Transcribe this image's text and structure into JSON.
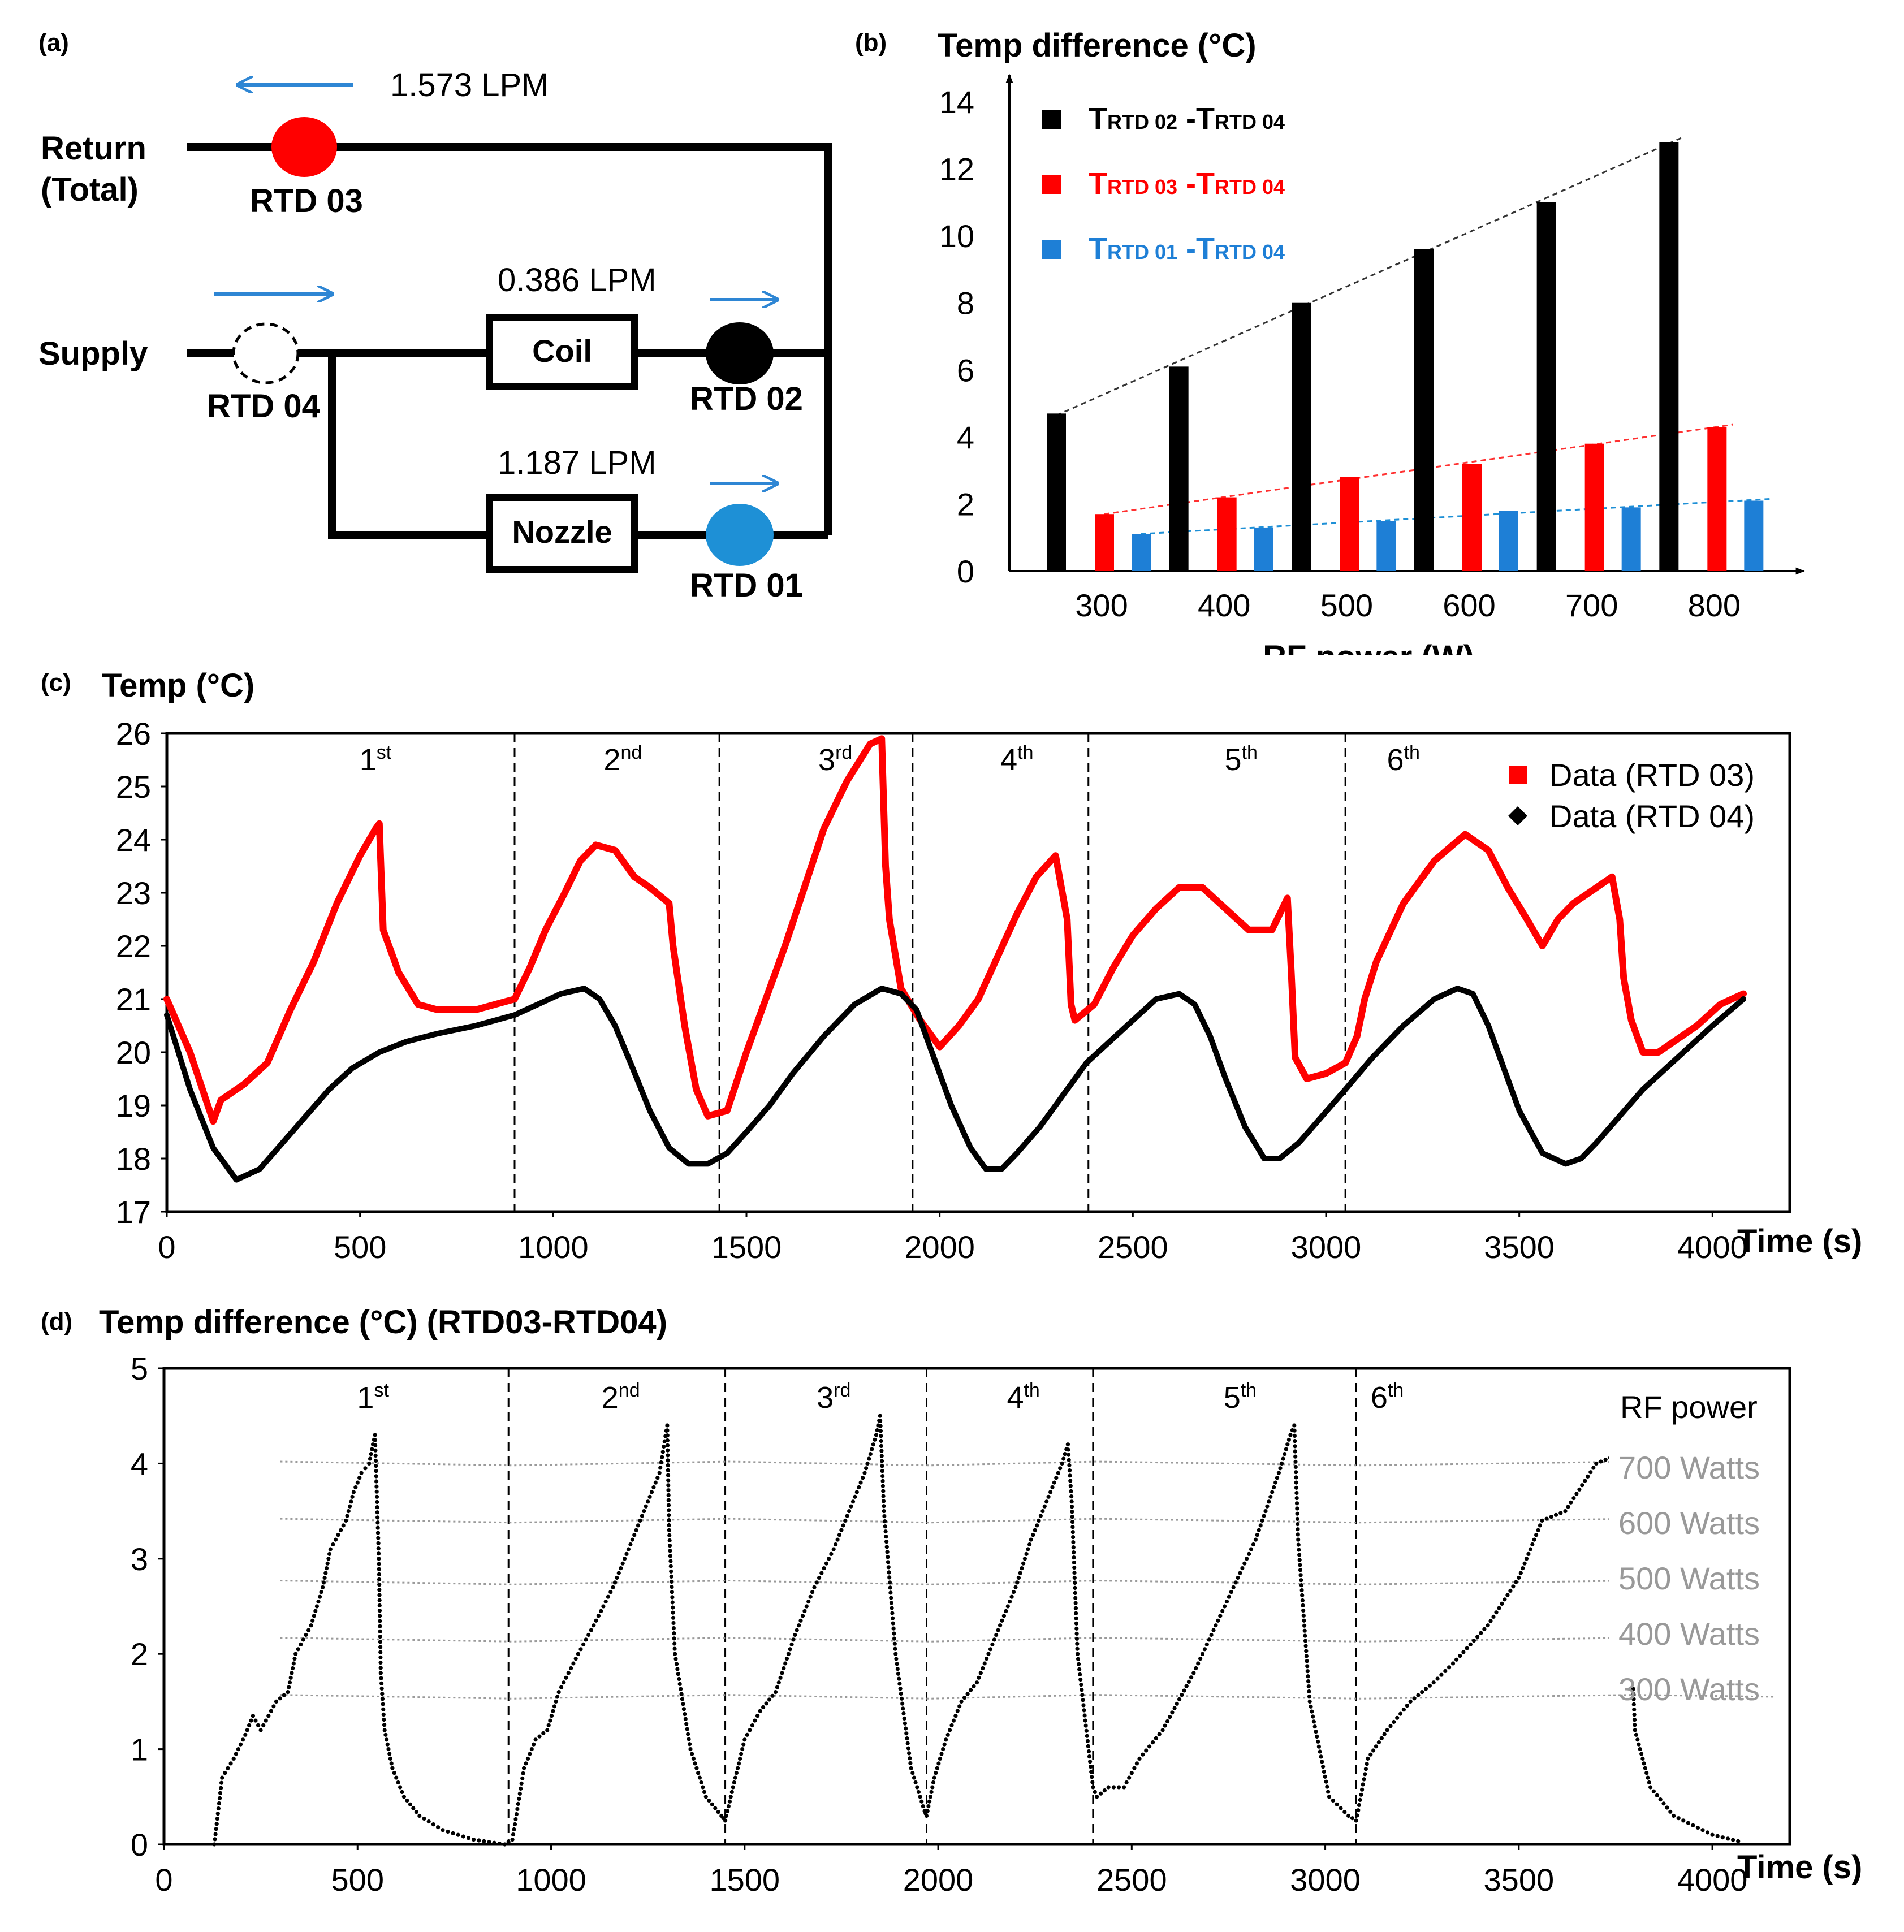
{
  "panels": {
    "a": {
      "label": "(a)",
      "return_label": "Return",
      "return_sub": "(Total)",
      "supply_label": "Supply",
      "flow_return": "1.573 LPM",
      "flow_coil": "0.386 LPM",
      "flow_nozzle": "1.187 LPM",
      "coil_label": "Coil",
      "nozzle_label": "Nozzle",
      "rtd01": "RTD 01",
      "rtd02": "RTD 02",
      "rtd03": "RTD 03",
      "rtd04": "RTD 04",
      "colors": {
        "rtd01": "#1e90d6",
        "rtd02": "#000000",
        "rtd03": "#ff0000",
        "rtd04": "#ffffff",
        "arrow": "#2e86d4"
      }
    },
    "b": {
      "label": "(b)"
    },
    "c": {
      "label": "(c)"
    },
    "d": {
      "label": "(d)"
    }
  },
  "chart_data": [
    {
      "id": "b",
      "type": "bar",
      "title": "Temp difference (°C)",
      "xlabel": "RF power (W)",
      "ylabel": "Temp difference (°C)",
      "ylim": [
        0,
        14
      ],
      "yticks": [
        "0",
        "2",
        "4",
        "6",
        "8",
        "10",
        "12",
        "14"
      ],
      "categories": [
        "300",
        "400",
        "500",
        "600",
        "700",
        "800"
      ],
      "series": [
        {
          "name": "TRTD 02 -TRTD 04",
          "color": "#000000",
          "values": [
            4.7,
            6.1,
            8.0,
            9.6,
            11.0,
            12.8
          ]
        },
        {
          "name": "TRTD 03 -TRTD 04",
          "color": "#ff0000",
          "values": [
            1.7,
            2.2,
            2.8,
            3.2,
            3.8,
            4.3
          ]
        },
        {
          "name": "TRTD 01 -TRTD 04",
          "color": "#1e7fd6",
          "values": [
            1.1,
            1.3,
            1.5,
            1.8,
            1.9,
            2.1
          ]
        }
      ],
      "legend": [
        {
          "pre": "T",
          "sub1": "RTD 02",
          "mid": " -T",
          "sub2": "RTD 04",
          "color": "#000000"
        },
        {
          "pre": "T",
          "sub1": "RTD 03",
          "mid": " -T",
          "sub2": "RTD 04",
          "color": "#ff0000"
        },
        {
          "pre": "T",
          "sub1": "RTD 01",
          "mid": " -T",
          "sub2": "RTD 04",
          "color": "#1e7fd6"
        }
      ],
      "trendlines": "dashed linear fit per series",
      "legend_position": "top-left"
    },
    {
      "id": "c",
      "type": "line",
      "ylabel": "Temp (°C)",
      "xlabel": "Time (s)",
      "xlim": [
        0,
        4200
      ],
      "ylim": [
        17,
        26
      ],
      "xticks": [
        "0",
        "500",
        "1000",
        "1500",
        "2000",
        "2500",
        "3000",
        "3500",
        "4000"
      ],
      "yticks": [
        "17",
        "18",
        "19",
        "20",
        "21",
        "22",
        "23",
        "24",
        "25",
        "26"
      ],
      "cycle_dividers": [
        900,
        1430,
        1930,
        2385,
        3050
      ],
      "cycles": [
        {
          "n": "1",
          "sup": "st",
          "x": 540
        },
        {
          "n": "2",
          "sup": "nd",
          "x": 1180
        },
        {
          "n": "3",
          "sup": "rd",
          "x": 1730
        },
        {
          "n": "4",
          "sup": "th",
          "x": 2200
        },
        {
          "n": "5",
          "sup": "th",
          "x": 2780
        },
        {
          "n": "6",
          "sup": "th",
          "x": 3200
        }
      ],
      "legend_position": "top-right",
      "series": [
        {
          "name": "Data (RTD 03)",
          "marker": "square",
          "color": "#ff0000",
          "x": [
            0,
            60,
            120,
            140,
            200,
            260,
            320,
            380,
            440,
            500,
            540,
            550,
            560,
            600,
            650,
            700,
            800,
            900,
            940,
            980,
            1030,
            1070,
            1110,
            1160,
            1210,
            1250,
            1300,
            1310,
            1340,
            1370,
            1400,
            1450,
            1500,
            1550,
            1600,
            1650,
            1700,
            1760,
            1820,
            1850,
            1860,
            1870,
            1900,
            1950,
            2000,
            2050,
            2100,
            2150,
            2200,
            2250,
            2300,
            2330,
            2340,
            2350,
            2400,
            2450,
            2500,
            2560,
            2620,
            2680,
            2740,
            2800,
            2860,
            2900,
            2910,
            2920,
            2950,
            3000,
            3050,
            3080,
            3100,
            3130,
            3200,
            3280,
            3360,
            3420,
            3470,
            3520,
            3560,
            3600,
            3640,
            3680,
            3740,
            3760,
            3770,
            3790,
            3820,
            3860,
            3900,
            3960,
            4020,
            4080
          ],
          "y": [
            21.0,
            20.0,
            18.7,
            19.1,
            19.4,
            19.8,
            20.8,
            21.7,
            22.8,
            23.7,
            24.2,
            24.3,
            22.3,
            21.5,
            20.9,
            20.8,
            20.8,
            21.0,
            21.6,
            22.3,
            23.0,
            23.6,
            23.9,
            23.8,
            23.3,
            23.1,
            22.8,
            22.0,
            20.5,
            19.3,
            18.8,
            18.9,
            20.0,
            21.0,
            22.0,
            23.1,
            24.2,
            25.1,
            25.8,
            25.9,
            23.5,
            22.5,
            21.2,
            20.6,
            20.1,
            20.5,
            21.0,
            21.8,
            22.6,
            23.3,
            23.7,
            22.5,
            20.9,
            20.6,
            20.9,
            21.6,
            22.2,
            22.7,
            23.1,
            23.1,
            22.7,
            22.3,
            22.3,
            22.9,
            21.5,
            19.9,
            19.5,
            19.6,
            19.8,
            20.3,
            21.0,
            21.7,
            22.8,
            23.6,
            24.1,
            23.8,
            23.1,
            22.5,
            22.0,
            22.5,
            22.8,
            23.0,
            23.3,
            22.5,
            21.4,
            20.6,
            20.0,
            20.0,
            20.2,
            20.5,
            20.9,
            21.1
          ]
        },
        {
          "name": "Data (RTD 04)",
          "marker": "diamond",
          "color": "#000000",
          "x": [
            0,
            60,
            120,
            180,
            240,
            300,
            360,
            420,
            480,
            550,
            620,
            700,
            800,
            900,
            960,
            1020,
            1080,
            1120,
            1160,
            1200,
            1250,
            1300,
            1350,
            1400,
            1450,
            1500,
            1560,
            1620,
            1700,
            1780,
            1850,
            1900,
            1940,
            1980,
            2030,
            2080,
            2120,
            2160,
            2200,
            2260,
            2320,
            2380,
            2440,
            2500,
            2560,
            2620,
            2660,
            2700,
            2740,
            2790,
            2840,
            2880,
            2930,
            2990,
            3050,
            3120,
            3200,
            3280,
            3340,
            3380,
            3420,
            3460,
            3500,
            3560,
            3620,
            3660,
            3700,
            3760,
            3820,
            3880,
            3940,
            4000,
            4080
          ],
          "y": [
            20.7,
            19.3,
            18.2,
            17.6,
            17.8,
            18.3,
            18.8,
            19.3,
            19.7,
            20.0,
            20.2,
            20.35,
            20.5,
            20.7,
            20.9,
            21.1,
            21.2,
            21.0,
            20.5,
            19.8,
            18.9,
            18.2,
            17.9,
            17.9,
            18.1,
            18.5,
            19.0,
            19.6,
            20.3,
            20.9,
            21.2,
            21.1,
            20.8,
            20.0,
            19.0,
            18.2,
            17.8,
            17.8,
            18.1,
            18.6,
            19.2,
            19.8,
            20.2,
            20.6,
            21.0,
            21.1,
            20.9,
            20.3,
            19.5,
            18.6,
            18.0,
            18.0,
            18.3,
            18.8,
            19.3,
            19.9,
            20.5,
            21.0,
            21.2,
            21.1,
            20.5,
            19.7,
            18.9,
            18.1,
            17.9,
            18.0,
            18.3,
            18.8,
            19.3,
            19.7,
            20.1,
            20.5,
            21.0
          ]
        }
      ]
    },
    {
      "id": "d",
      "type": "scatter",
      "ylabel": "Temp difference (°C) (RTD03-RTD04)",
      "xlabel": "Time (s)",
      "xlim": [
        0,
        4200
      ],
      "ylim": [
        0,
        5
      ],
      "xticks": [
        "0",
        "500",
        "1000",
        "1500",
        "2000",
        "2500",
        "3000",
        "3500",
        "4000"
      ],
      "yticks": [
        "0",
        "1",
        "2",
        "3",
        "4",
        "5"
      ],
      "cycle_dividers": [
        890,
        1450,
        1970,
        2400,
        3080
      ],
      "cycles": [
        {
          "n": "1",
          "sup": "st",
          "x": 540
        },
        {
          "n": "2",
          "sup": "nd",
          "x": 1180
        },
        {
          "n": "3",
          "sup": "rd",
          "x": 1730
        },
        {
          "n": "4",
          "sup": "th",
          "x": 2220
        },
        {
          "n": "5",
          "sup": "th",
          "x": 2780
        },
        {
          "n": "6",
          "sup": "th",
          "x": 3160
        }
      ],
      "rf_power_title": "RF power",
      "level_labels": [
        "700 Watts",
        "600 Watts",
        "500 Watts",
        "400 Watts",
        "300 Watts"
      ],
      "level_values": [
        4.0,
        3.4,
        2.75,
        2.15,
        1.55
      ],
      "level_color": "#999999",
      "series": [
        {
          "name": "RTD03-RTD04",
          "color": "#000000",
          "x": [
            130,
            150,
            180,
            210,
            230,
            250,
            290,
            320,
            340,
            380,
            410,
            430,
            470,
            490,
            510,
            530,
            545,
            555,
            560,
            570,
            590,
            620,
            660,
            720,
            800,
            880,
            900,
            930,
            960,
            990,
            1020,
            1070,
            1110,
            1160,
            1200,
            1240,
            1280,
            1300,
            1305,
            1320,
            1360,
            1400,
            1440,
            1450,
            1470,
            1500,
            1540,
            1580,
            1630,
            1680,
            1730,
            1770,
            1810,
            1840,
            1850,
            1860,
            1890,
            1930,
            1965,
            1970,
            1990,
            2020,
            2060,
            2100,
            2150,
            2200,
            2240,
            2280,
            2320,
            2335,
            2345,
            2360,
            2400,
            2410,
            2440,
            2480,
            2520,
            2580,
            2660,
            2740,
            2820,
            2880,
            2910,
            2920,
            2930,
            2960,
            3010,
            3060,
            3080,
            3110,
            3160,
            3220,
            3280,
            3330,
            3420,
            3500,
            3560,
            3620,
            3700,
            3760,
            3775,
            3780,
            3800,
            3840,
            3900,
            4000,
            4080
          ],
          "y": [
            0.0,
            0.7,
            0.9,
            1.15,
            1.35,
            1.2,
            1.5,
            1.6,
            2.0,
            2.3,
            2.7,
            3.1,
            3.4,
            3.7,
            3.9,
            4.0,
            4.3,
            3.0,
            1.8,
            1.2,
            0.8,
            0.5,
            0.3,
            0.15,
            0.05,
            0.0,
            0.05,
            0.8,
            1.1,
            1.2,
            1.6,
            2.0,
            2.3,
            2.7,
            3.1,
            3.5,
            3.9,
            4.4,
            3.3,
            2.0,
            1.0,
            0.5,
            0.3,
            0.25,
            0.6,
            1.1,
            1.4,
            1.6,
            2.2,
            2.7,
            3.1,
            3.5,
            3.9,
            4.3,
            4.5,
            3.5,
            2.0,
            0.8,
            0.35,
            0.3,
            0.7,
            1.1,
            1.5,
            1.7,
            2.2,
            2.7,
            3.2,
            3.6,
            4.0,
            4.2,
            3.6,
            2.0,
            0.6,
            0.5,
            0.6,
            0.6,
            0.9,
            1.2,
            1.8,
            2.5,
            3.2,
            3.9,
            4.3,
            4.4,
            3.2,
            1.5,
            0.5,
            0.3,
            0.25,
            0.9,
            1.2,
            1.5,
            1.7,
            1.9,
            2.3,
            2.8,
            3.4,
            3.5,
            4.0,
            4.1,
            4.45,
            3.2,
            1.2,
            0.6,
            0.3,
            0.1,
            0.02
          ]
        }
      ]
    }
  ]
}
